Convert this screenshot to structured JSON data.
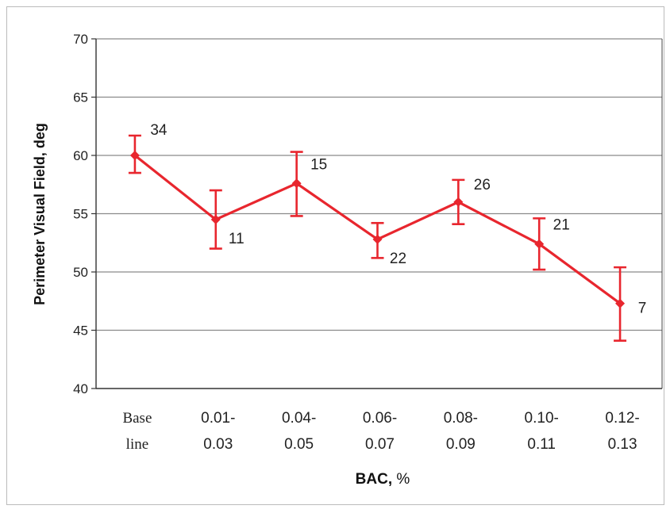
{
  "chart_data": {
    "type": "line",
    "categories": [
      [
        "Base",
        "line"
      ],
      [
        "0.01-",
        "0.03"
      ],
      [
        "0.04-",
        "0.05"
      ],
      [
        "0.06-",
        "0.07"
      ],
      [
        "0.08-",
        "0.09"
      ],
      [
        "0.10-",
        "0.11"
      ],
      [
        "0.12-",
        "0.13"
      ]
    ],
    "series": [
      {
        "values": [
          60.0,
          54.5,
          57.6,
          52.8,
          56.0,
          52.4,
          47.3
        ],
        "error_low": [
          58.5,
          52.0,
          54.8,
          51.2,
          54.1,
          50.2,
          44.1
        ],
        "error_high": [
          61.7,
          57.0,
          60.3,
          54.2,
          57.9,
          54.6,
          50.4
        ],
        "data_labels": [
          "34",
          "11",
          "15",
          "22",
          "26",
          "21",
          "7"
        ]
      }
    ],
    "ylabel": "Perimeter Visual Field, deg",
    "xlabel_bold": "BAC,",
    "xlabel_rest": " %",
    "ylim": [
      40,
      70
    ],
    "yticks": [
      "40",
      "45",
      "50",
      "55",
      "60",
      "65",
      "70"
    ],
    "grid": true,
    "color": "#e8262e"
  }
}
